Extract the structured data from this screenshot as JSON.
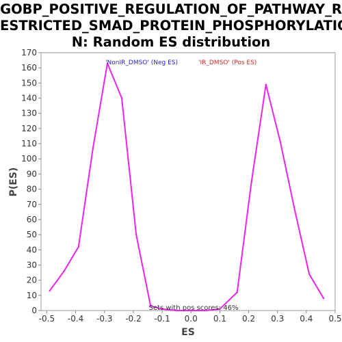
{
  "chart_data": {
    "type": "line",
    "title_lines": [
      "GOBP_POSITIVE_REGULATION_OF_PATHWAY_R",
      "ESTRICTED_SMAD_PROTEIN_PHOSPHORYLATIO",
      "N: Random ES distribution"
    ],
    "xlabel": "ES",
    "ylabel": "P(ES)",
    "xlim": [
      -0.52,
      0.5
    ],
    "ylim": [
      0,
      170
    ],
    "xticks": [
      -0.5,
      -0.4,
      -0.3,
      -0.2,
      -0.1,
      0.0,
      0.1,
      0.2,
      0.3,
      0.4,
      0.5
    ],
    "xtick_labels": [
      "-0.5",
      "-0.4",
      "-0.3",
      "-0.2",
      "-0.1",
      "0.0",
      "0.1",
      "0.2",
      "0.3",
      "0.4",
      "0.5"
    ],
    "yticks": [
      0,
      10,
      20,
      30,
      40,
      50,
      60,
      70,
      80,
      90,
      100,
      110,
      120,
      130,
      140,
      150,
      160,
      170
    ],
    "grid": false,
    "legend_position": "top",
    "legend": [
      {
        "label": "'NonIR_DMSO' (Neg ES)",
        "color": "#2020d0"
      },
      {
        "label": "'IR_DMSO' (Pos ES)",
        "color": "#e02020"
      }
    ],
    "line_color": "#ee22ee",
    "series": [
      {
        "x": [
          -0.49,
          -0.44,
          -0.39,
          -0.34,
          -0.29,
          -0.24,
          -0.19,
          -0.14,
          -0.1,
          -0.05,
          0.0,
          0.05,
          0.1,
          0.16,
          0.21,
          0.26,
          0.31,
          0.36,
          0.41,
          0.46
        ],
        "values": [
          13,
          26,
          42,
          107,
          163,
          140,
          50,
          3,
          1,
          0,
          0,
          0,
          1,
          12,
          85,
          149,
          111,
          66,
          24,
          8
        ]
      }
    ],
    "annotation": "Sets with pos scores: 46%"
  }
}
